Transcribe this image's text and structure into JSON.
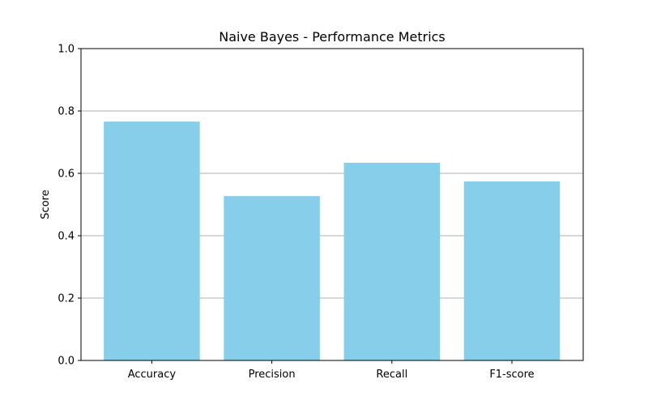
{
  "chart_data": {
    "type": "bar",
    "title": "Naive Bayes - Performance Metrics",
    "xlabel": "",
    "ylabel": "Score",
    "categories": [
      "Accuracy",
      "Precision",
      "Recall",
      "F1-score"
    ],
    "values": [
      0.766,
      0.527,
      0.634,
      0.574
    ],
    "ylim": [
      0,
      1.0
    ],
    "yticks": [
      "0.0",
      "0.2",
      "0.4",
      "0.6",
      "0.8",
      "1.0"
    ],
    "grid": "y-axis",
    "bar_color": "#87CEEB",
    "grid_color": "#b0b0b0"
  }
}
